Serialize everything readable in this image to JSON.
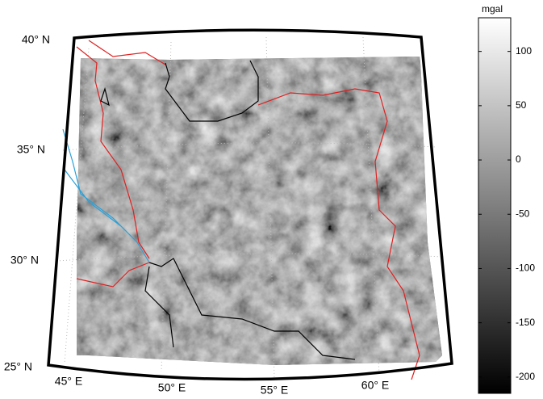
{
  "map": {
    "lat_labels": [
      "40° N",
      "35° N",
      "30° N",
      "25° N"
    ],
    "lon_labels": [
      "45° E",
      "50° E",
      "55° E",
      "60° E"
    ],
    "colorbar": {
      "label": "mgal",
      "lim": [
        -215,
        131
      ],
      "ticks": [
        100,
        50,
        0,
        -50,
        -100,
        -150,
        -200
      ]
    }
  }
}
